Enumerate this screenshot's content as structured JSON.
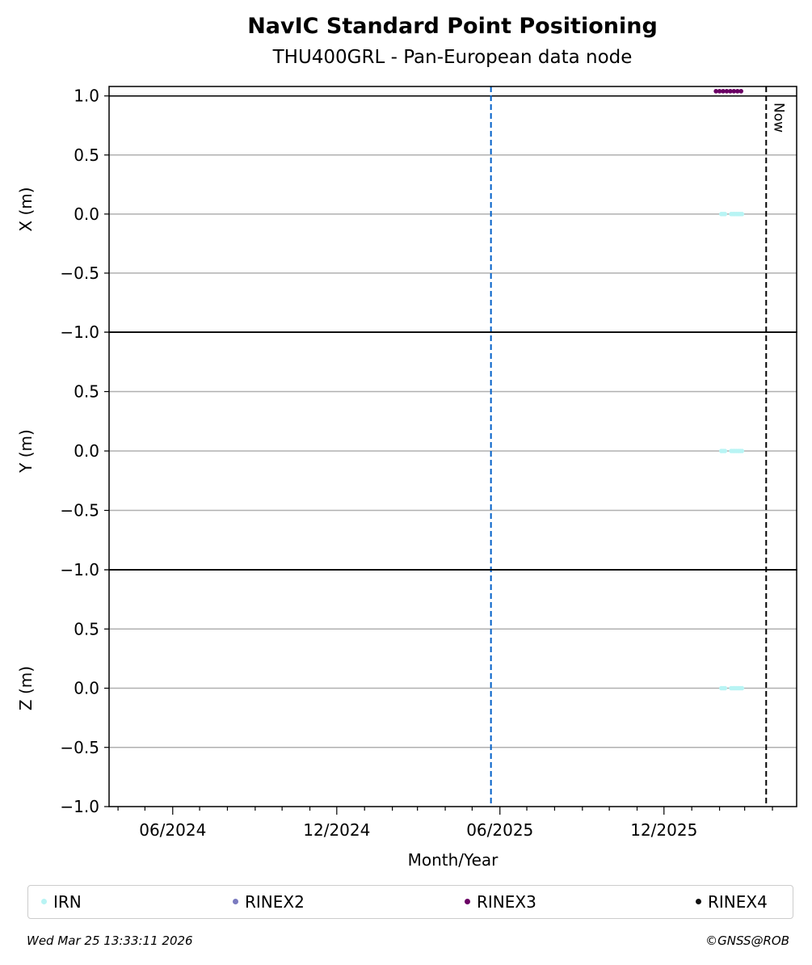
{
  "chart_data": {
    "type": "scatter",
    "title": "NavIC Standard Point Positioning",
    "subtitle": "THU400GRL - Pan-European data node",
    "xlabel": "Month/Year",
    "x_tick_labels": [
      "06/2024",
      "12/2024",
      "06/2025",
      "12/2025"
    ],
    "xlim": [
      "2024-03-22",
      "2026-04-28"
    ],
    "y_tick_labels": [
      "1.0",
      "0.5",
      "0.0",
      "−0.5",
      "−1.0"
    ],
    "panels": [
      {
        "ylabel": "X (m)",
        "ylim": [
          -1,
          1.08
        ]
      },
      {
        "ylabel": "Y (m)",
        "ylim": [
          -1,
          1
        ]
      },
      {
        "ylabel": "Z (m)",
        "ylim": [
          -1,
          1
        ]
      }
    ],
    "grid": true,
    "vlines": [
      {
        "date": "2025-05-22",
        "color": "#0060c8",
        "style": "dashed"
      },
      {
        "date": "2026-03-25",
        "color": "#000000",
        "style": "dashed",
        "label": "Now"
      }
    ],
    "series": [
      {
        "name": "IRN",
        "color": "#b8f4f4",
        "panels": [
          0,
          1,
          2
        ],
        "x": [
          "2026-02-03",
          "2026-02-05",
          "2026-02-07",
          "2026-02-14",
          "2026-02-16",
          "2026-02-18",
          "2026-02-20",
          "2026-02-22",
          "2026-02-24",
          "2026-02-26"
        ],
        "y": [
          0,
          0,
          0,
          0,
          0,
          0,
          0,
          0,
          0,
          0
        ]
      },
      {
        "name": "RINEX2",
        "color": "#7b7bc0",
        "panels": [],
        "x": [],
        "y": []
      },
      {
        "name": "RINEX3",
        "color": "#6a0064",
        "panels": [
          0
        ],
        "x": [
          "2026-01-28",
          "2026-02-01",
          "2026-02-05",
          "2026-02-09",
          "2026-02-13",
          "2026-02-17",
          "2026-02-21",
          "2026-02-25"
        ],
        "y": [
          1.04,
          1.04,
          1.04,
          1.04,
          1.04,
          1.04,
          1.04,
          1.04
        ]
      },
      {
        "name": "RINEX4",
        "color": "#111111",
        "panels": [],
        "x": [],
        "y": []
      }
    ],
    "legend": "bottom"
  },
  "footer": {
    "timestamp": "Wed Mar 25 13:33:11 2026",
    "credit": "©GNSS@ROB"
  }
}
